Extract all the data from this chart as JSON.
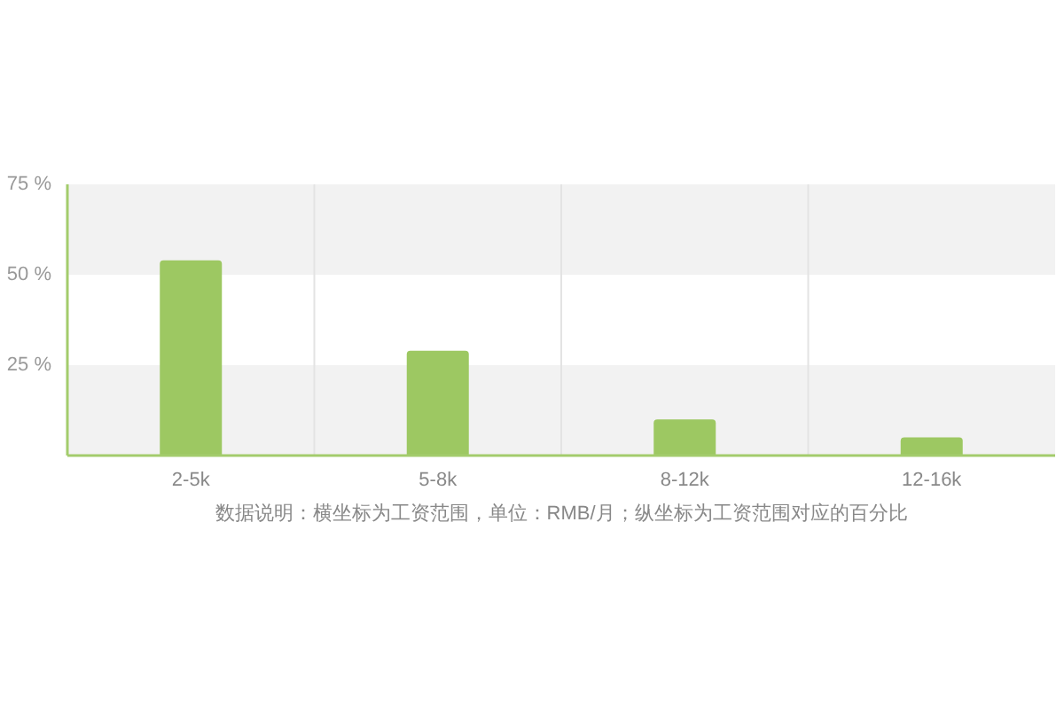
{
  "chart_data": {
    "type": "bar",
    "categories": [
      "2-5k",
      "5-8k",
      "8-12k",
      "12-16k"
    ],
    "values": [
      54,
      29,
      10,
      5
    ],
    "color": "#9dc862",
    "ylim": [
      0,
      75
    ],
    "yticks": [
      {
        "value": 25,
        "label": "25 %"
      },
      {
        "value": 50,
        "label": "50 %"
      },
      {
        "value": 75,
        "label": "75 %"
      }
    ],
    "grid": "x",
    "bands": [
      {
        "axis": "y",
        "from": 0,
        "to": 25,
        "color": "#f2f2f2"
      },
      {
        "axis": "y",
        "from": 50,
        "to": 75,
        "color": "#f2f2f2"
      }
    ],
    "annotations": [
      "数据说明：横坐标为工资范围，单位：RMB/月；纵坐标为工资范围对应的百分比"
    ]
  }
}
